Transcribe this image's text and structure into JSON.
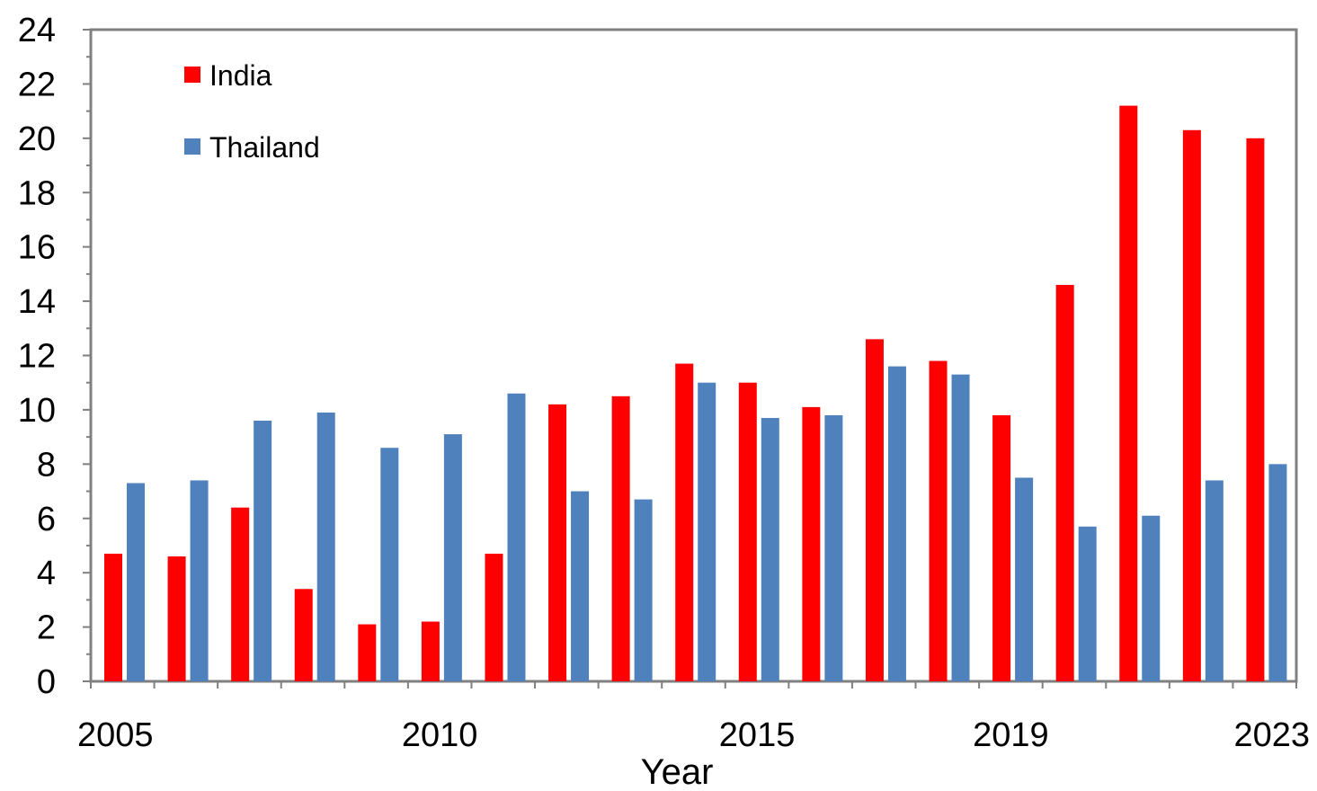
{
  "chart_data": {
    "type": "bar",
    "title": "",
    "xlabel": "Year",
    "ylabel": "",
    "ylim": [
      0,
      24
    ],
    "yticks": [
      0,
      2,
      4,
      6,
      8,
      10,
      12,
      14,
      16,
      18,
      20,
      22,
      24
    ],
    "categories": [
      "2005",
      "2006",
      "2007",
      "2008",
      "2009",
      "2010",
      "2011",
      "2012",
      "2013",
      "2014",
      "2015",
      "2016",
      "2017",
      "2018",
      "2019",
      "2020",
      "2021",
      "2022",
      "2023"
    ],
    "x_tick_labels": [
      {
        "category": "2005",
        "label": "2005"
      },
      {
        "category": "2010",
        "label": "2010"
      },
      {
        "category": "2015",
        "label": "2015"
      },
      {
        "category": "2019",
        "label": "2019"
      },
      {
        "category": "2023",
        "label": "2023"
      }
    ],
    "series": [
      {
        "name": "India",
        "color": "#ff0000",
        "values": [
          4.7,
          4.6,
          6.4,
          3.4,
          2.1,
          2.2,
          4.7,
          10.2,
          10.5,
          11.7,
          11.0,
          10.1,
          12.6,
          11.8,
          9.8,
          14.6,
          21.2,
          20.3,
          20.0
        ]
      },
      {
        "name": "Thailand",
        "color": "#4f81bd",
        "values": [
          7.3,
          7.4,
          9.6,
          9.9,
          8.6,
          9.1,
          10.6,
          7.0,
          6.7,
          11.0,
          9.7,
          9.8,
          11.6,
          11.3,
          7.5,
          5.7,
          6.1,
          7.4,
          8.0
        ]
      }
    ],
    "grid": false,
    "legend_position": "top-left"
  }
}
